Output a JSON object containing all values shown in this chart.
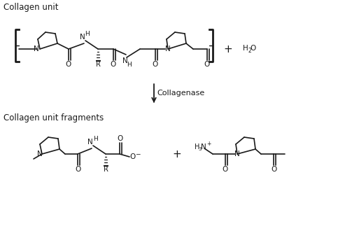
{
  "bg_color": "#ffffff",
  "line_color": "#1a1a1a",
  "text_color": "#1a1a1a",
  "font_size_label": 8.5,
  "font_size_atom": 7.5,
  "font_size_enzyme": 8.0,
  "title_top": "Collagen unit",
  "title_bottom": "Collagen unit fragments",
  "enzyme_label": "Collagenase"
}
